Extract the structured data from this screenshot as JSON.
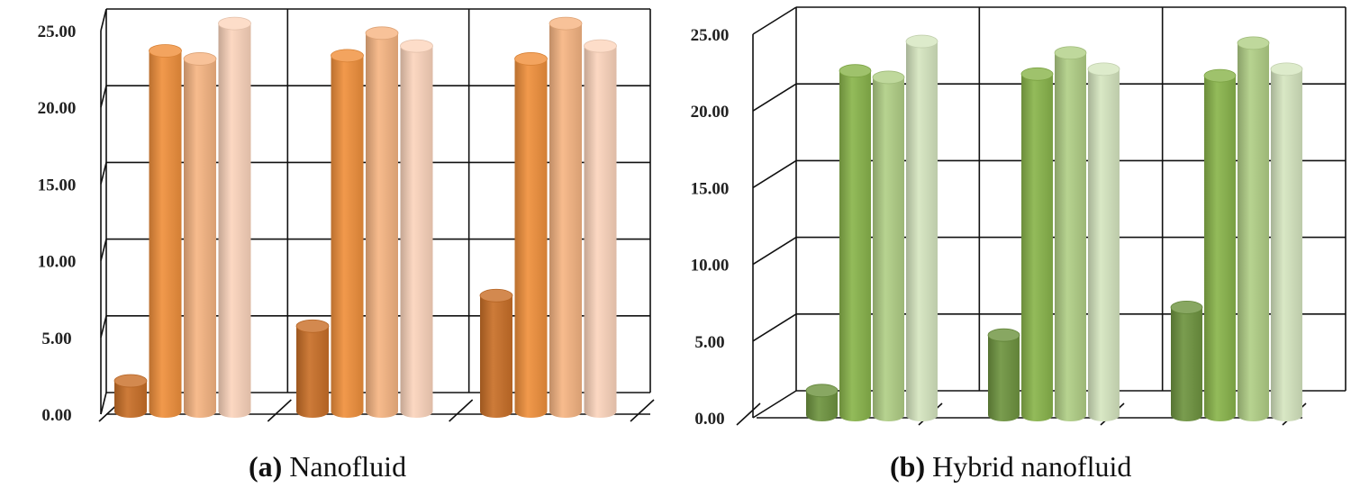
{
  "chart_data": [
    {
      "type": "bar",
      "panel_label": "(a)",
      "caption": "Nanofluid",
      "groups": 3,
      "series_per_group": 4,
      "values": [
        [
          1.9,
          22.4,
          21.9,
          24.1
        ],
        [
          5.3,
          22.1,
          23.5,
          22.7
        ],
        [
          7.2,
          21.9,
          24.1,
          22.7
        ]
      ],
      "colors": [
        "#c96f28",
        "#f0903c",
        "#f6b583",
        "#fcd5bd"
      ],
      "ylim": [
        0,
        25
      ],
      "yticks": [
        "0.00",
        "5.00",
        "10.00",
        "15.00",
        "20.00",
        "25.00"
      ],
      "grid": true
    },
    {
      "type": "bar",
      "panel_label": "(b)",
      "caption": "Hybrid nanofluid",
      "groups": 3,
      "series_per_group": 4,
      "values": [
        [
          1.5,
          21.1,
          20.7,
          22.9
        ],
        [
          4.9,
          20.9,
          22.2,
          21.2
        ],
        [
          6.6,
          20.8,
          22.8,
          21.2
        ]
      ],
      "colors": [
        "#6e9440",
        "#8ab54c",
        "#b1cf86",
        "#d6e6c0"
      ],
      "ylim": [
        0,
        25
      ],
      "yticks": [
        "0.00",
        "5.00",
        "10.00",
        "15.00",
        "20.00",
        "25.00"
      ],
      "grid": true
    }
  ]
}
